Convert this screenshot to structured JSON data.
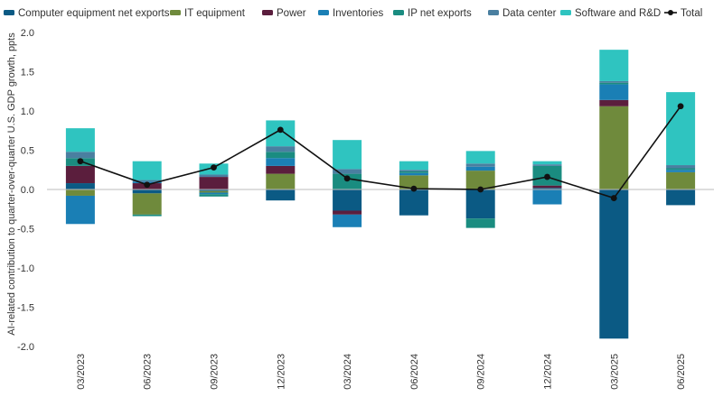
{
  "chart_data": {
    "type": "bar",
    "stacked": true,
    "ylabel": "AI-related contribution to quarter-over-quarter U.S. GDP growth, ppts",
    "ylim": [
      -2.0,
      2.0
    ],
    "yticks": [
      2.0,
      1.5,
      1.0,
      0.5,
      0.0,
      -0.5,
      -1.0,
      -1.5,
      -2.0
    ],
    "ytick_labels": [
      "2.0",
      "1.5",
      "1.0",
      "0.5",
      "0.0",
      "-0.5",
      "-1.0",
      "-1.5",
      "-2.0"
    ],
    "grid": false,
    "legend_position": "top",
    "categories": [
      "03/2023",
      "06/2023",
      "09/2023",
      "12/2023",
      "03/2024",
      "06/2024",
      "09/2024",
      "12/2024",
      "03/2025",
      "06/2025"
    ],
    "series": [
      {
        "name": "Computer equipment net exports",
        "color": "#0b5a84",
        "values": [
          0.08,
          -0.05,
          -0.02,
          -0.14,
          -0.27,
          -0.33,
          -0.37,
          0.02,
          -1.9,
          -0.2
        ]
      },
      {
        "name": "IT equipment",
        "color": "#6f8a3c",
        "values": [
          -0.08,
          -0.27,
          -0.02,
          0.2,
          0.0,
          0.18,
          0.24,
          0.0,
          1.06,
          0.22
        ]
      },
      {
        "name": "Power",
        "color": "#5b1e3d",
        "values": [
          0.22,
          0.08,
          0.16,
          0.1,
          -0.05,
          0.0,
          0.0,
          0.03,
          0.08,
          0.0
        ]
      },
      {
        "name": "Inventories",
        "color": "#1a7fb5",
        "values": [
          -0.36,
          0.02,
          -0.02,
          0.1,
          -0.16,
          0.03,
          0.05,
          -0.19,
          0.2,
          0.03
        ]
      },
      {
        "name": "IP net exports",
        "color": "#1a8c80",
        "values": [
          0.1,
          -0.02,
          -0.03,
          0.08,
          0.2,
          0.02,
          -0.12,
          0.25,
          0.02,
          0.02
        ]
      },
      {
        "name": "Data center",
        "color": "#4a7fa0",
        "values": [
          0.08,
          0.02,
          0.03,
          0.07,
          0.06,
          0.02,
          0.04,
          0.02,
          0.02,
          0.04
        ]
      },
      {
        "name": "Software and R&D",
        "color": "#2fc4c0",
        "values": [
          0.3,
          0.24,
          0.14,
          0.33,
          0.37,
          0.11,
          0.16,
          0.04,
          0.4,
          0.93
        ]
      }
    ],
    "total": {
      "name": "Total",
      "color": "#111111",
      "values": [
        0.36,
        0.06,
        0.28,
        0.76,
        0.14,
        0.01,
        0.0,
        0.16,
        -0.11,
        1.06
      ]
    }
  }
}
